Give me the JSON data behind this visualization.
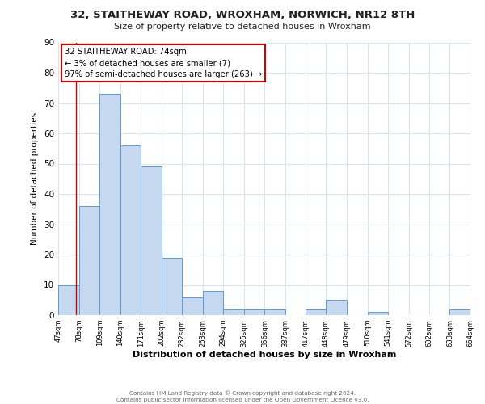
{
  "title": "32, STAITHEWAY ROAD, WROXHAM, NORWICH, NR12 8TH",
  "subtitle": "Size of property relative to detached houses in Wroxham",
  "xlabel": "Distribution of detached houses by size in Wroxham",
  "ylabel": "Number of detached properties",
  "bar_color": "#c5d8f0",
  "bar_edge_color": "#5b9bd5",
  "annotation_box_color": "#cc0000",
  "annotation_text_line1": "32 STAITHEWAY ROAD: 74sqm",
  "annotation_text_line2": "← 3% of detached houses are smaller (7)",
  "annotation_text_line3": "97% of semi-detached houses are larger (263) →",
  "property_line_x": 74,
  "ylim": [
    0,
    90
  ],
  "xlim": [
    47,
    664
  ],
  "bin_edges": [
    47,
    78,
    109,
    140,
    171,
    202,
    232,
    263,
    294,
    325,
    356,
    387,
    417,
    448,
    479,
    510,
    541,
    572,
    602,
    633,
    664
  ],
  "bin_counts": [
    10,
    36,
    73,
    56,
    49,
    19,
    6,
    8,
    2,
    2,
    2,
    0,
    2,
    5,
    0,
    1,
    0,
    0,
    0,
    2
  ],
  "xtick_labels": [
    "47sqm",
    "78sqm",
    "109sqm",
    "140sqm",
    "171sqm",
    "202sqm",
    "232sqm",
    "263sqm",
    "294sqm",
    "325sqm",
    "356sqm",
    "387sqm",
    "417sqm",
    "448sqm",
    "479sqm",
    "510sqm",
    "541sqm",
    "572sqm",
    "602sqm",
    "633sqm",
    "664sqm"
  ],
  "ytick_values": [
    0,
    10,
    20,
    30,
    40,
    50,
    60,
    70,
    80,
    90
  ],
  "footer_line1": "Contains HM Land Registry data © Crown copyright and database right 2024.",
  "footer_line2": "Contains public sector information licensed under the Open Government Licence v3.0.",
  "background_color": "#ffffff",
  "grid_color": "#d8e4f0"
}
